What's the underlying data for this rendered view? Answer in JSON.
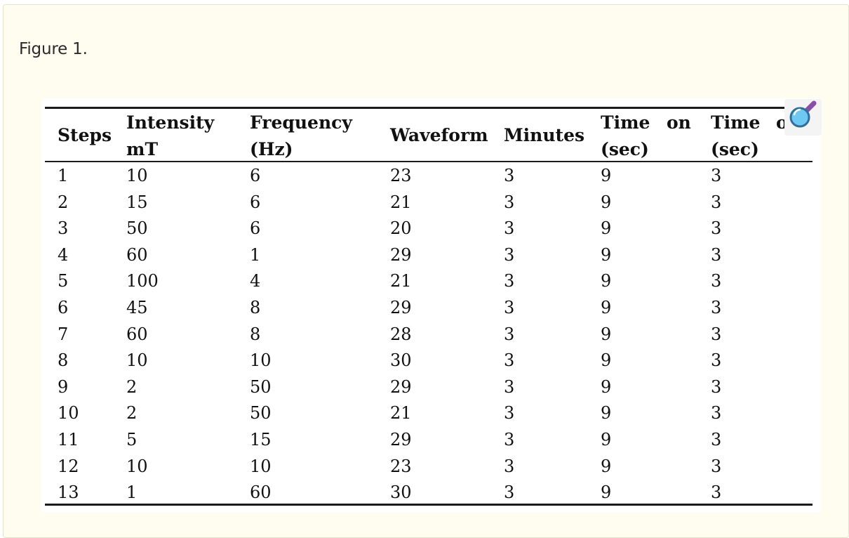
{
  "caption": "Figure 1.",
  "zoom_icon": "magnifier-zoom-icon",
  "table": {
    "headers": {
      "steps": "Steps",
      "intensity_line1": "Intensity",
      "intensity_line2": "mT",
      "frequency_line1": "Frequency",
      "frequency_line2": "(Hz)",
      "waveform": "Waveform",
      "minutes": "Minutes",
      "time_on_line1a": "Time",
      "time_on_line1b": "on",
      "time_on_line2": "(sec)",
      "time_off_line1a": "Time",
      "time_off_line1b": "of",
      "time_off_line2": "(sec)"
    },
    "rows": [
      [
        "1",
        "10",
        "6",
        "23",
        "3",
        "9",
        "3"
      ],
      [
        "2",
        "15",
        "6",
        "21",
        "3",
        "9",
        "3"
      ],
      [
        "3",
        "50",
        "6",
        "20",
        "3",
        "9",
        "3"
      ],
      [
        "4",
        "60",
        "1",
        "29",
        "3",
        "9",
        "3"
      ],
      [
        "5",
        "100",
        "4",
        "21",
        "3",
        "9",
        "3"
      ],
      [
        "6",
        "45",
        "8",
        "29",
        "3",
        "9",
        "3"
      ],
      [
        "7",
        "60",
        "8",
        "28",
        "3",
        "9",
        "3"
      ],
      [
        "8",
        "10",
        "10",
        "30",
        "3",
        "9",
        "3"
      ],
      [
        "9",
        "2",
        "50",
        "29",
        "3",
        "9",
        "3"
      ],
      [
        "10",
        "2",
        "50",
        "21",
        "3",
        "9",
        "3"
      ],
      [
        "11",
        "5",
        "15",
        "29",
        "3",
        "9",
        "3"
      ],
      [
        "12",
        "10",
        "10",
        "23",
        "3",
        "9",
        "3"
      ],
      [
        "13",
        "1",
        "60",
        "30",
        "3",
        "9",
        "3"
      ]
    ]
  }
}
